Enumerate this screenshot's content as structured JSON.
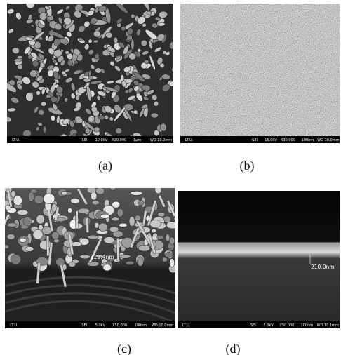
{
  "panels": [
    {
      "label": "(a)",
      "info_bar": {
        "operator": "LT.U.",
        "detector": "SEI",
        "voltage": "10.0kV",
        "magnification": "X20,000",
        "scale": "1μm",
        "working_distance": "WD 10.0mm"
      }
    },
    {
      "label": "(b)",
      "info_bar": {
        "operator": "LT.U.",
        "detector": "SEI",
        "voltage": "15.0kV",
        "magnification": "X30,000",
        "scale": "100nm",
        "working_distance": "WD 10.0mm"
      }
    },
    {
      "label": "(c)",
      "info_bar": {
        "operator": "LT.U.",
        "detector": "SEI",
        "voltage": "5.0kV",
        "magnification": "X50,000",
        "scale": "100nm",
        "working_distance": "WD 10.0mm"
      },
      "annotation": "129.4nm"
    },
    {
      "label": "(d)",
      "info_bar": {
        "operator": "LT.U.",
        "detector": "SEI",
        "voltage": "5.0kV",
        "magnification": "X50,000",
        "scale": "100nm",
        "working_distance": "WD 10.1mm"
      },
      "annotation": "210.0nm"
    }
  ]
}
